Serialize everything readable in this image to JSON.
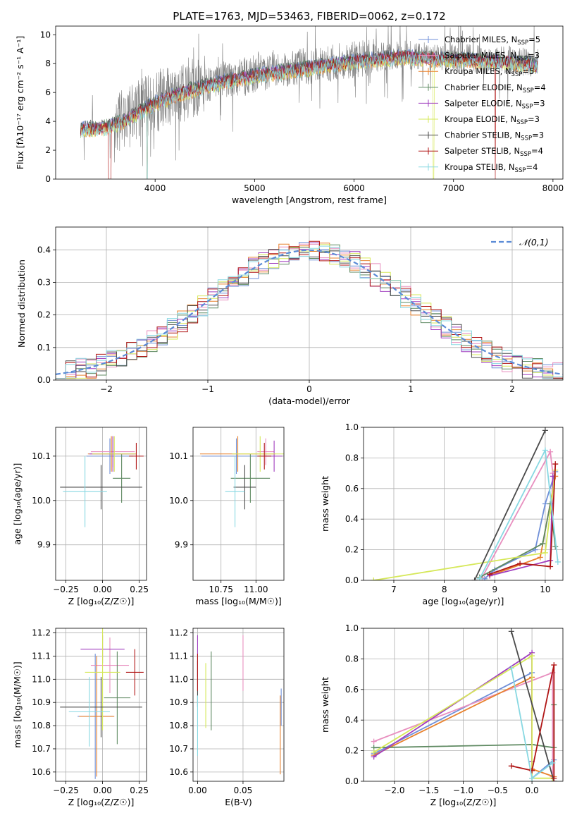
{
  "figure": {
    "title": "PLATE=1763, MJD=53463, FIBERID=0062, z=0.172"
  },
  "colors": {
    "observed": "#808080",
    "normal_curve": "#5b8bd6",
    "grid": "#b0b0b0"
  },
  "models": [
    {
      "name": "Chabrier MILES",
      "nssp": "5",
      "color": "#6f8fd8"
    },
    {
      "name": "Salpeter MILES",
      "nssp": "3",
      "color": "#e88fbf"
    },
    {
      "name": "Kroupa MILES",
      "nssp": "5",
      "color": "#e8822e"
    },
    {
      "name": "Chabrier ELODIE",
      "nssp": "4",
      "color": "#5f8a62"
    },
    {
      "name": "Salpeter ELODIE",
      "nssp": "3",
      "color": "#a13fbf"
    },
    {
      "name": "Kroupa ELODIE",
      "nssp": "3",
      "color": "#d6e85a"
    },
    {
      "name": "Chabrier STELIB",
      "nssp": "3",
      "color": "#4a4a4a"
    },
    {
      "name": "Salpeter STELIB",
      "nssp": "4",
      "color": "#b01515"
    },
    {
      "name": "Kroupa STELIB",
      "nssp": "4",
      "color": "#88d8e2"
    }
  ],
  "chart_data": [
    {
      "id": "spectrum",
      "type": "line",
      "xlabel": "wavelength [Angstrom, rest frame]",
      "ylabel": "Flux [fλ10⁻¹⁷ erg cm⁻² s⁻¹ A⁻¹]",
      "xlim": [
        3000,
        8100
      ],
      "ylim": [
        0,
        10.6
      ],
      "xticks": [
        4000,
        5000,
        6000,
        7000,
        8000
      ],
      "yticks": [
        0,
        2,
        4,
        6,
        8,
        10
      ],
      "grid": false,
      "legend": "upper right",
      "wavelength_range": [
        3250,
        7850
      ],
      "continuum": [
        [
          3250,
          3.6
        ],
        [
          3500,
          3.7
        ],
        [
          3700,
          4.2
        ],
        [
          4000,
          5.4
        ],
        [
          4300,
          6.2
        ],
        [
          4700,
          6.9
        ],
        [
          5000,
          7.3
        ],
        [
          5500,
          7.8
        ],
        [
          6000,
          8.3
        ],
        [
          6500,
          8.6
        ],
        [
          7000,
          8.4
        ],
        [
          7500,
          8.3
        ],
        [
          7850,
          8.0
        ]
      ]
    },
    {
      "id": "residual_hist",
      "type": "line",
      "xlabel": "(data-model)/error",
      "ylabel": "Normed distribution",
      "xlim": [
        -2.5,
        2.5
      ],
      "ylim": [
        0,
        0.47
      ],
      "xticks": [
        -2,
        -1,
        0,
        1,
        2
      ],
      "yticks": [
        0.0,
        0.1,
        0.2,
        0.3,
        0.4
      ],
      "grid": true,
      "legend": "upper right",
      "bin_width": 0.1,
      "series": [
        {
          "name": "𝒩(0,1)",
          "style": "dashed",
          "mean": 0,
          "sigma": 1
        }
      ]
    },
    {
      "id": "age_vs_Z",
      "type": "scatter",
      "xlabel": "Z [log₁₀(Z/Z☉)]",
      "ylabel": "age  [log₁₀(age/yr)]",
      "xlim": [
        -0.32,
        0.3
      ],
      "ylim": [
        9.82,
        10.165
      ],
      "xticks": [
        -0.25,
        0.0,
        0.25
      ],
      "yticks": [
        9.9,
        10.0,
        10.1
      ],
      "grid": true,
      "errorbars": [
        {
          "model": 0,
          "x": 0.05,
          "xerr": 0.16,
          "y": 10.1,
          "yerr": 0.04
        },
        {
          "model": 1,
          "x": 0.07,
          "xerr": 0.15,
          "y": 10.11,
          "yerr": 0.035
        },
        {
          "model": 2,
          "x": 0.06,
          "xerr": 0.16,
          "y": 10.105,
          "yerr": 0.04
        },
        {
          "model": 3,
          "x": 0.13,
          "xerr": 0.06,
          "y": 10.05,
          "yerr": 0.055
        },
        {
          "model": 4,
          "x": 0.07,
          "xerr": 0.16,
          "y": 10.105,
          "yerr": 0.04
        },
        {
          "model": 5,
          "x": 0.08,
          "xerr": 0.15,
          "y": 10.105,
          "yerr": 0.04
        },
        {
          "model": 6,
          "x": -0.01,
          "xerr": 0.28,
          "y": 10.03,
          "yerr": 0.05
        },
        {
          "model": 7,
          "x": 0.23,
          "xerr": 0.05,
          "y": 10.1,
          "yerr": 0.03
        },
        {
          "model": 8,
          "x": -0.12,
          "xerr": 0.15,
          "y": 10.02,
          "yerr": 0.08
        }
      ]
    },
    {
      "id": "age_vs_mass",
      "type": "scatter",
      "xlabel": "mass [log₁₀(M/M☉)]",
      "ylabel": "",
      "xlim": [
        10.55,
        11.2
      ],
      "ylim": [
        9.82,
        10.165
      ],
      "xticks": [
        10.75,
        11.0
      ],
      "yticks": [
        9.9,
        10.0,
        10.1
      ],
      "grid": true,
      "errorbars": [
        {
          "model": 0,
          "x": 10.86,
          "xerr": 0.25,
          "y": 10.1,
          "yerr": 0.04
        },
        {
          "model": 1,
          "x": 11.07,
          "xerr": 0.06,
          "y": 10.11,
          "yerr": 0.03
        },
        {
          "model": 2,
          "x": 10.87,
          "xerr": 0.27,
          "y": 10.105,
          "yerr": 0.04
        },
        {
          "model": 3,
          "x": 10.96,
          "xerr": 0.14,
          "y": 10.05,
          "yerr": 0.055
        },
        {
          "model": 4,
          "x": 11.13,
          "xerr": 0.06,
          "y": 10.1,
          "yerr": 0.035
        },
        {
          "model": 5,
          "x": 11.03,
          "xerr": 0.2,
          "y": 10.105,
          "yerr": 0.04
        },
        {
          "model": 6,
          "x": 10.92,
          "xerr": 0.08,
          "y": 10.03,
          "yerr": 0.05
        },
        {
          "model": 7,
          "x": 11.06,
          "xerr": 0.05,
          "y": 10.1,
          "yerr": 0.03
        },
        {
          "model": 8,
          "x": 10.85,
          "xerr": 0.07,
          "y": 10.02,
          "yerr": 0.08
        }
      ]
    },
    {
      "id": "weight_vs_age",
      "type": "line",
      "xlabel": "age  [log₁₀(age/yr)]",
      "ylabel": "mass weight",
      "xlim": [
        6.4,
        10.35
      ],
      "ylim": [
        0,
        1
      ],
      "xticks": [
        7,
        8,
        9,
        10
      ],
      "yticks": [
        0.0,
        0.2,
        0.4,
        0.6,
        0.8,
        1.0
      ],
      "grid": true,
      "series": [
        {
          "model": 0,
          "points": [
            [
              8.8,
              0.01
            ],
            [
              9.0,
              0.07
            ],
            [
              9.8,
              0.2
            ],
            [
              10.0,
              0.5
            ],
            [
              10.2,
              0.71
            ]
          ]
        },
        {
          "model": 1,
          "points": [
            [
              8.75,
              0.02
            ],
            [
              10.1,
              0.84
            ],
            [
              10.15,
              0.7
            ]
          ]
        },
        {
          "model": 2,
          "points": [
            [
              8.9,
              0.03
            ],
            [
              9.9,
              0.15
            ],
            [
              10.2,
              0.68
            ]
          ]
        },
        {
          "model": 3,
          "points": [
            [
              8.7,
              0.02
            ],
            [
              9.95,
              0.24
            ],
            [
              10.1,
              0.5
            ],
            [
              10.2,
              0.22
            ]
          ]
        },
        {
          "model": 4,
          "points": [
            [
              8.9,
              0.03
            ],
            [
              10.1,
              0.13
            ],
            [
              10.15,
              0.68
            ]
          ]
        },
        {
          "model": 5,
          "points": [
            [
              6.6,
              0.0
            ],
            [
              10.0,
              0.18
            ],
            [
              10.2,
              0.72
            ]
          ]
        },
        {
          "model": 6,
          "points": [
            [
              8.6,
              0.0
            ],
            [
              10.0,
              0.98
            ]
          ]
        },
        {
          "model": 7,
          "points": [
            [
              8.9,
              0.04
            ],
            [
              9.5,
              0.11
            ],
            [
              10.1,
              0.09
            ],
            [
              10.2,
              0.76
            ]
          ]
        },
        {
          "model": 8,
          "points": [
            [
              8.7,
              0.01
            ],
            [
              10.0,
              0.85
            ],
            [
              10.25,
              0.12
            ]
          ]
        }
      ]
    },
    {
      "id": "mass_vs_Z",
      "type": "scatter",
      "xlabel": "Z [log₁₀(Z/Z☉)]",
      "ylabel": "mass [log₁₀(M/M☉)]",
      "xlim": [
        -0.32,
        0.3
      ],
      "ylim": [
        10.56,
        11.22
      ],
      "xticks": [
        -0.25,
        0.0,
        0.25
      ],
      "yticks": [
        10.6,
        10.7,
        10.8,
        10.9,
        11.0,
        11.1,
        11.2
      ],
      "grid": true,
      "errorbars": [
        {
          "model": 0,
          "x": -0.05,
          "xerr": 0.12,
          "y": 10.84,
          "yerr": 0.27
        },
        {
          "model": 1,
          "x": 0.05,
          "xerr": 0.13,
          "y": 11.06,
          "yerr": 0.12
        },
        {
          "model": 2,
          "x": -0.04,
          "xerr": 0.12,
          "y": 10.84,
          "yerr": 0.26
        },
        {
          "model": 3,
          "x": 0.1,
          "xerr": 0.09,
          "y": 10.92,
          "yerr": 0.2
        },
        {
          "model": 4,
          "x": 0.0,
          "xerr": 0.15,
          "y": 11.13,
          "yerr": 0.06
        },
        {
          "model": 5,
          "x": 0.0,
          "xerr": 0.12,
          "y": 11.03,
          "yerr": 0.25
        },
        {
          "model": 6,
          "x": -0.01,
          "xerr": 0.28,
          "y": 10.88,
          "yerr": 0.13
        },
        {
          "model": 7,
          "x": 0.22,
          "xerr": 0.06,
          "y": 11.03,
          "yerr": 0.1
        },
        {
          "model": 8,
          "x": -0.09,
          "xerr": 0.14,
          "y": 10.86,
          "yerr": 0.15
        }
      ]
    },
    {
      "id": "mass_vs_ebv",
      "type": "scatter",
      "xlabel": "E(B-V)",
      "ylabel": "",
      "xlim": [
        -0.005,
        0.095
      ],
      "ylim": [
        10.56,
        11.22
      ],
      "xticks": [
        0.0,
        0.05
      ],
      "yticks": [
        10.6,
        10.7,
        10.8,
        10.9,
        11.0,
        11.1,
        11.2
      ],
      "grid": true,
      "errorbars": [
        {
          "model": 0,
          "x": 0.092,
          "xerr": 0,
          "y": 10.88,
          "yerr": 0.08
        },
        {
          "model": 1,
          "x": 0.05,
          "xerr": 0,
          "y": 11.07,
          "yerr": 0.12
        },
        {
          "model": 2,
          "x": 0.091,
          "xerr": 0,
          "y": 10.76,
          "yerr": 0.17
        },
        {
          "model": 3,
          "x": 0.015,
          "xerr": 0,
          "y": 10.95,
          "yerr": 0.17
        },
        {
          "model": 4,
          "x": 0.0,
          "xerr": 0,
          "y": 11.1,
          "yerr": 0.09
        },
        {
          "model": 5,
          "x": 0.009,
          "xerr": 0,
          "y": 10.93,
          "yerr": 0.14
        },
        {
          "model": 6,
          "x": 0.0,
          "xerr": 0,
          "y": 10.98,
          "yerr": 0.1
        },
        {
          "model": 7,
          "x": 0.0,
          "xerr": 0,
          "y": 11.03,
          "yerr": 0.08
        },
        {
          "model": 8,
          "x": 0.0,
          "xerr": 0,
          "y": 10.8,
          "yerr": 0.13
        }
      ]
    },
    {
      "id": "weight_vs_Z",
      "type": "line",
      "xlabel": "Z [log₁₀(Z/Z☉)]",
      "ylabel": "mass weight",
      "xlim": [
        -2.45,
        0.45
      ],
      "ylim": [
        0,
        1
      ],
      "xticks": [
        -2.0,
        -1.5,
        -1.0,
        -0.5,
        0.0
      ],
      "yticks": [
        0.0,
        0.2,
        0.4,
        0.6,
        0.8,
        1.0
      ],
      "grid": true,
      "series": [
        {
          "model": 0,
          "points": [
            [
              -2.3,
              0.18
            ],
            [
              0.0,
              0.71
            ],
            [
              0.0,
              0.02
            ],
            [
              0.32,
              0.14
            ]
          ]
        },
        {
          "model": 1,
          "points": [
            [
              -2.3,
              0.26
            ],
            [
              0.3,
              0.71
            ],
            [
              0.3,
              0.03
            ]
          ]
        },
        {
          "model": 2,
          "points": [
            [
              -2.3,
              0.17
            ],
            [
              0.0,
              0.68
            ],
            [
              0.0,
              0.08
            ],
            [
              0.32,
              0.03
            ]
          ]
        },
        {
          "model": 3,
          "points": [
            [
              -2.3,
              0.22
            ],
            [
              0.0,
              0.24
            ],
            [
              0.32,
              0.22
            ],
            [
              0.32,
              0.5
            ]
          ]
        },
        {
          "model": 4,
          "points": [
            [
              -2.3,
              0.16
            ],
            [
              0.0,
              0.84
            ],
            [
              0.0,
              0.13
            ]
          ]
        },
        {
          "model": 5,
          "points": [
            [
              -2.3,
              0.19
            ],
            [
              0.0,
              0.82
            ],
            [
              0.0,
              0.02
            ],
            [
              0.3,
              0.02
            ]
          ]
        },
        {
          "model": 6,
          "points": [
            [
              -0.3,
              0.98
            ],
            [
              0.32,
              0.0
            ]
          ]
        },
        {
          "model": 7,
          "points": [
            [
              -0.3,
              0.1
            ],
            [
              0.0,
              0.07
            ],
            [
              0.32,
              0.76
            ],
            [
              0.32,
              0.02
            ]
          ]
        },
        {
          "model": 8,
          "points": [
            [
              -0.3,
              0.74
            ],
            [
              0.0,
              0.02
            ],
            [
              0.3,
              0.12
            ]
          ]
        }
      ]
    }
  ]
}
